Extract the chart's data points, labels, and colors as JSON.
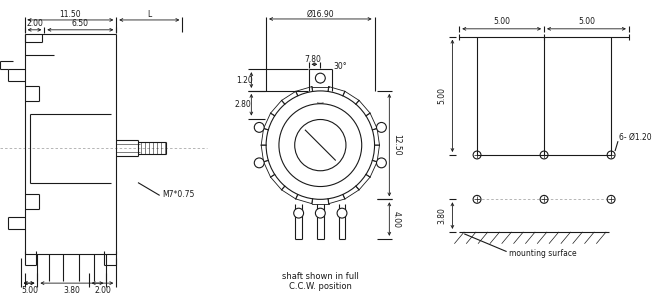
{
  "bg_color": "#ffffff",
  "line_color": "#1a1a1a",
  "dashed_color": "#aaaaaa",
  "font_size": 5.5,
  "annotations": {
    "dim_11_50": "11.50",
    "dim_L": "L",
    "dim_2_00_top": "2.00",
    "dim_6_50": "6.50",
    "dim_M7": "M7*0.75",
    "dim_2_00_bot": "2.00",
    "dim_5_00_left": "5.00",
    "dim_3_80_left": "3.80",
    "dim_16_90": "Ø16.90",
    "dim_7_80": "7.80",
    "dim_30": "30°",
    "dim_1_20": "1.20",
    "dim_2_80": "2.80",
    "dim_12_50": "12.50",
    "dim_4_00": "4.00",
    "caption1": "shaft shown in full",
    "caption2": "C.C.W. position",
    "dim_5_00_r1": "5.00",
    "dim_5_00_r2": "5.00",
    "dim_5_00_rv": "5.00",
    "dim_3_80_r": "3.80",
    "dim_6_phi": "6- Ø1.20",
    "mounting": "mounting surface"
  }
}
